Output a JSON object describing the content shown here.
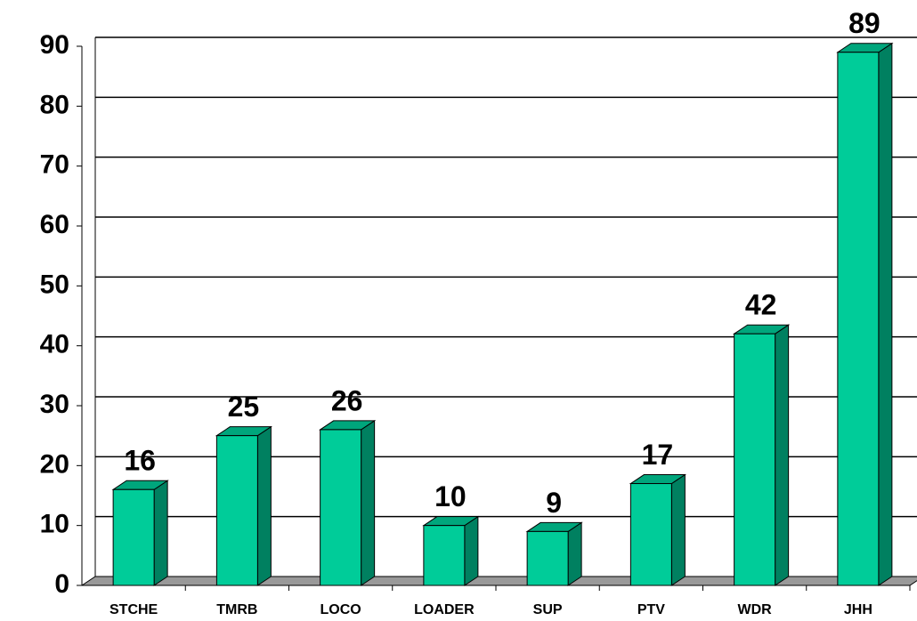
{
  "chart_data": {
    "type": "bar3d",
    "categories": [
      "STCHE",
      "TMRB",
      "LOCO",
      "LOADER",
      "SUP",
      "PTV",
      "WDR",
      "JHH"
    ],
    "values": [
      16,
      25,
      26,
      10,
      9,
      17,
      42,
      89
    ],
    "color": "#00cc99",
    "ylim": [
      0,
      90
    ],
    "yticks": [
      0,
      10,
      20,
      30,
      40,
      50,
      60,
      70,
      80,
      90
    ],
    "grid": true
  }
}
